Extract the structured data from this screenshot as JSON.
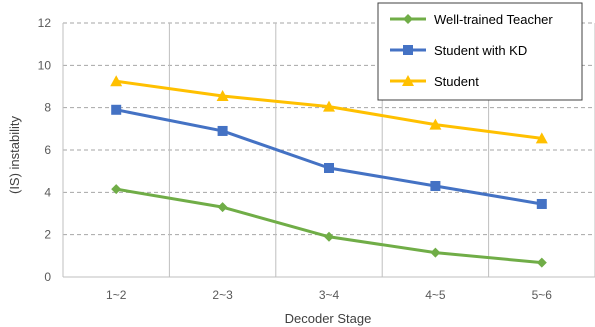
{
  "chart_data": {
    "type": "line",
    "categories": [
      "1~2",
      "2~3",
      "3~4",
      "4~5",
      "5~6"
    ],
    "series": [
      {
        "name": "Well-trained Teacher",
        "values": [
          4.15,
          3.3,
          1.9,
          1.15,
          0.68
        ],
        "color": "#70ad47",
        "marker": "diamond"
      },
      {
        "name": "Student with KD",
        "values": [
          7.9,
          6.9,
          5.15,
          4.3,
          3.45
        ],
        "color": "#4472c4",
        "marker": "square"
      },
      {
        "name": "Student",
        "values": [
          9.25,
          8.55,
          8.05,
          7.2,
          6.55
        ],
        "color": "#ffc000",
        "marker": "triangle"
      }
    ],
    "xlabel": "Decoder Stage",
    "ylabel": "(IS) instability",
    "ylim": [
      0,
      12
    ],
    "yticks": [
      0,
      2,
      4,
      6,
      8,
      10,
      12
    ],
    "grid": "dashed horizontal and vertical",
    "legend": "top-right"
  }
}
